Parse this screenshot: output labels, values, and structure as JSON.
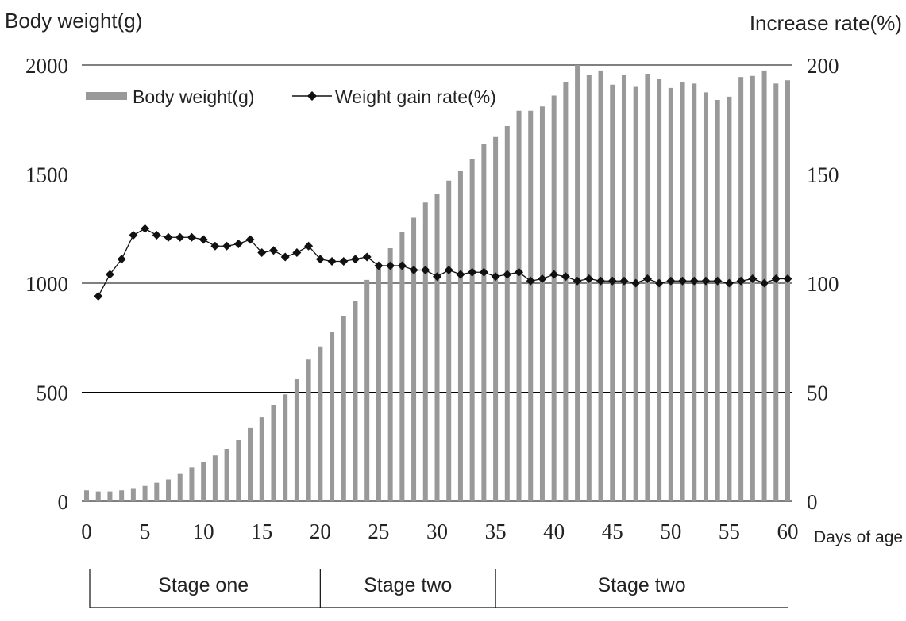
{
  "chart_data": {
    "type": "bar",
    "left_axis_title": "Body weight(g)",
    "right_axis_title": "Increase rate(%)",
    "xlabel": "Days of age",
    "x_ticks": [
      0,
      5,
      10,
      15,
      20,
      25,
      30,
      35,
      40,
      45,
      50,
      55,
      60
    ],
    "y_left_ticks": [
      0,
      500,
      1000,
      1500,
      2000
    ],
    "y_right_ticks": [
      0,
      50,
      100,
      150,
      200
    ],
    "ylim_left": [
      0,
      2000
    ],
    "ylim_right": [
      0,
      200
    ],
    "xlim": [
      0,
      60
    ],
    "grid": true,
    "legend_placement": "top-left",
    "colors": {
      "bars": "#999999",
      "line": "#111111",
      "grid": "#000000"
    },
    "series": [
      {
        "name": "Body weight(g)",
        "type": "bar",
        "axis": "left",
        "x": [
          0,
          1,
          2,
          3,
          4,
          5,
          6,
          7,
          8,
          9,
          10,
          11,
          12,
          13,
          14,
          15,
          16,
          17,
          18,
          19,
          20,
          21,
          22,
          23,
          24,
          25,
          26,
          27,
          28,
          29,
          30,
          31,
          32,
          33,
          34,
          35,
          36,
          37,
          38,
          39,
          40,
          41,
          42,
          43,
          44,
          45,
          46,
          47,
          48,
          49,
          50,
          51,
          52,
          53,
          54,
          55,
          56,
          57,
          58,
          59,
          60
        ],
        "values": [
          50,
          45,
          45,
          50,
          60,
          70,
          85,
          100,
          125,
          155,
          180,
          210,
          240,
          280,
          335,
          385,
          440,
          490,
          560,
          650,
          710,
          775,
          850,
          920,
          1015,
          1095,
          1160,
          1235,
          1300,
          1370,
          1410,
          1470,
          1515,
          1570,
          1640,
          1670,
          1720,
          1790,
          1790,
          1810,
          1860,
          1920,
          2000,
          1955,
          1975,
          1910,
          1955,
          1900,
          1960,
          1935,
          1895,
          1920,
          1915,
          1875,
          1840,
          1855,
          1945,
          1950,
          1975,
          1915,
          1930
        ]
      },
      {
        "name": "Weight gain rate(%)",
        "type": "line",
        "axis": "right",
        "x": [
          1,
          2,
          3,
          4,
          5,
          6,
          7,
          8,
          9,
          10,
          11,
          12,
          13,
          14,
          15,
          16,
          17,
          18,
          19,
          20,
          21,
          22,
          23,
          24,
          25,
          26,
          27,
          28,
          29,
          30,
          31,
          32,
          33,
          34,
          35,
          36,
          37,
          38,
          39,
          40,
          41,
          42,
          43,
          44,
          45,
          46,
          47,
          48,
          49,
          50,
          51,
          52,
          53,
          54,
          55,
          56,
          57,
          58,
          59,
          60
        ],
        "values": [
          94,
          104,
          111,
          122,
          125,
          122,
          121,
          121,
          121,
          120,
          117,
          117,
          118,
          120,
          114,
          115,
          112,
          114,
          117,
          111,
          110,
          110,
          111,
          112,
          108,
          108,
          108,
          106,
          106,
          103,
          106,
          104,
          105,
          105,
          103,
          104,
          105,
          101,
          102,
          104,
          103,
          101,
          102,
          101,
          101,
          101,
          100,
          102,
          100,
          101,
          101,
          101,
          101,
          101,
          100,
          101,
          102,
          100,
          102,
          102
        ]
      }
    ],
    "stages": [
      {
        "label": "Stage one",
        "from": 0,
        "to": 20
      },
      {
        "label": "Stage two",
        "from": 20,
        "to": 35
      },
      {
        "label": "Stage two",
        "from": 35,
        "to": 60
      }
    ]
  }
}
